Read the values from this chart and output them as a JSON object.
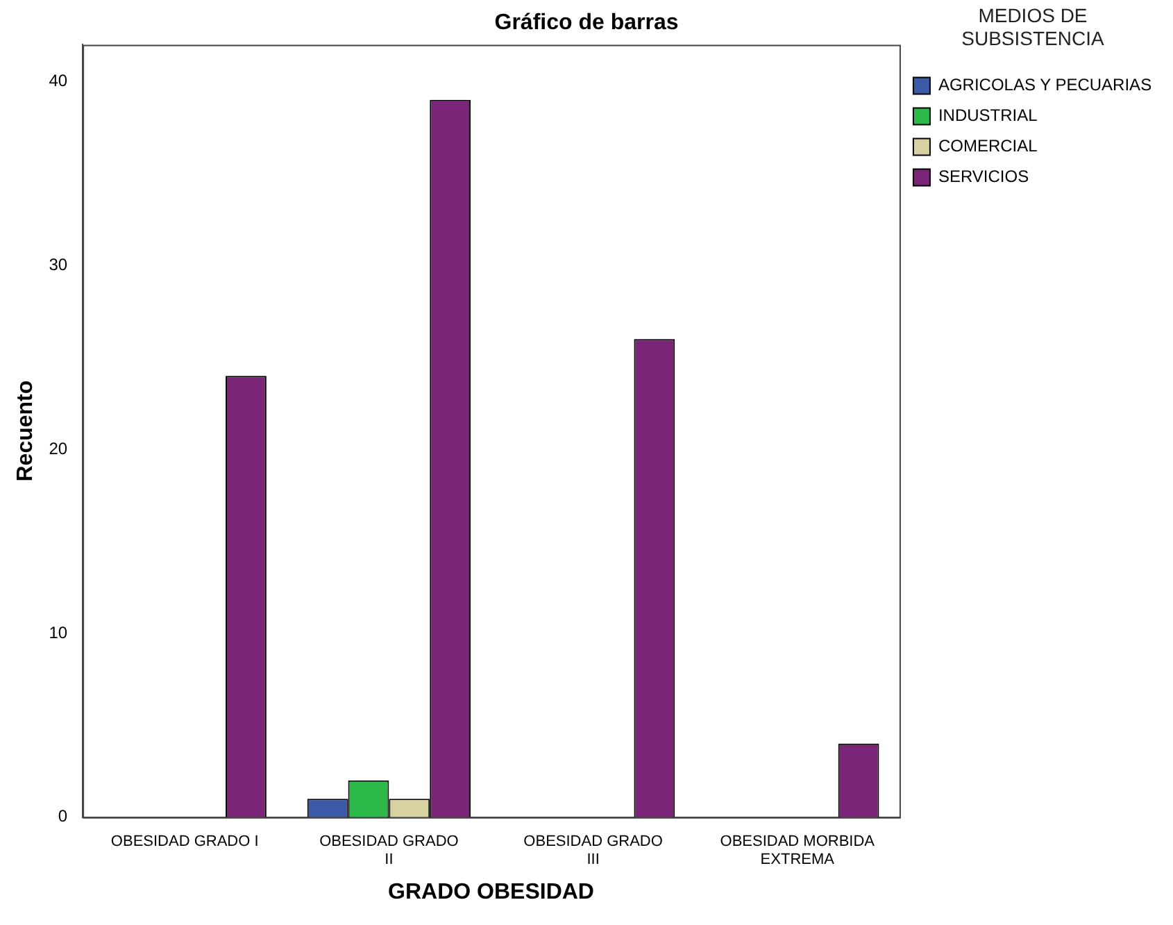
{
  "chart_data": {
    "type": "bar",
    "title": "Gráfico de barras",
    "xlabel": "GRADO OBESIDAD",
    "ylabel": "Recuento",
    "legend_title": "MEDIOS DE SUBSISTENCIA",
    "categories": [
      "OBESIDAD GRADO I",
      "OBESIDAD GRADO II",
      "OBESIDAD GRADO III",
      "OBESIDAD MORBIDA EXTREMA"
    ],
    "series": [
      {
        "name": "AGRICOLAS Y PECUARIAS",
        "color": "#3c5aa8",
        "values": [
          null,
          1,
          null,
          null
        ]
      },
      {
        "name": "INDUSTRIAL",
        "color": "#2db84a",
        "values": [
          null,
          2,
          null,
          null
        ]
      },
      {
        "name": "COMERCIAL",
        "color": "#d8d2a0",
        "values": [
          null,
          1,
          null,
          null
        ]
      },
      {
        "name": "SERVICIOS",
        "color": "#7b2578",
        "values": [
          24,
          39,
          26,
          4
        ]
      }
    ],
    "ylim": [
      0,
      42
    ],
    "yticks": [
      0,
      10,
      20,
      30,
      40
    ],
    "grid": false,
    "legend": "top right"
  }
}
